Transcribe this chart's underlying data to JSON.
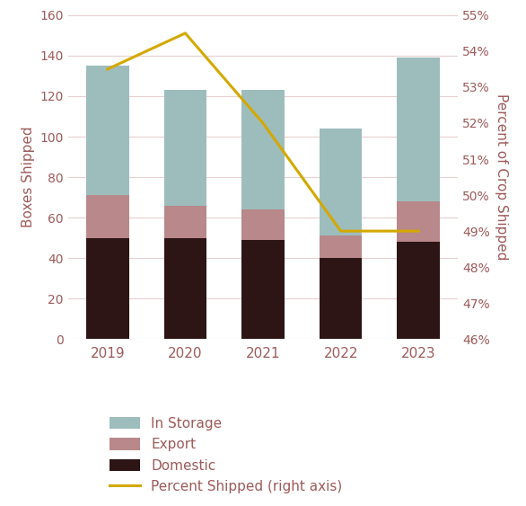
{
  "years": [
    "2019",
    "2020",
    "2021",
    "2022",
    "2023"
  ],
  "domestic": [
    50,
    50,
    49,
    40,
    48
  ],
  "export": [
    21,
    16,
    15,
    11,
    20
  ],
  "in_storage": [
    64,
    57,
    59,
    53,
    71
  ],
  "percent_shipped": [
    53.5,
    54.5,
    52.0,
    49.0,
    49.0
  ],
  "bar_width": 0.55,
  "domestic_color": "#2d1515",
  "export_color": "#b8888a",
  "in_storage_color": "#9dbdbd",
  "line_color": "#d4a800",
  "left_ylim": [
    0,
    160
  ],
  "right_ylim": [
    46,
    55
  ],
  "left_yticks": [
    0,
    20,
    40,
    60,
    80,
    100,
    120,
    140,
    160
  ],
  "right_yticks": [
    46,
    47,
    48,
    49,
    50,
    51,
    52,
    53,
    54,
    55
  ],
  "ylabel_left": "Boxes Shipped",
  "ylabel_right": "Percent of Crop Shipped",
  "axis_label_color": "#9e5a5a",
  "tick_label_color": "#9e5a5a",
  "grid_color": "#e8d0d0",
  "background_color": "#ffffff",
  "legend_fontsize": 11,
  "tick_fontsize": 10,
  "ylabel_fontsize": 11
}
